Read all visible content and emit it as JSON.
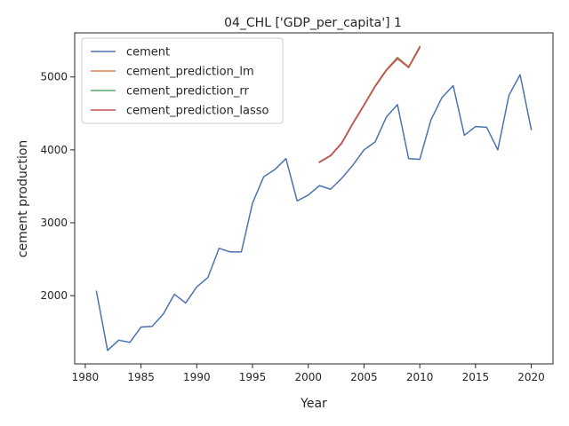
{
  "chart_data": {
    "type": "line",
    "title": "04_CHL ['GDP_per_capita'] 1",
    "xlabel": "Year",
    "ylabel": "cement production",
    "xlim": [
      1979.05,
      2021.95
    ],
    "ylim": [
      1065,
      5605
    ],
    "x_ticks": [
      1980,
      1985,
      1990,
      1995,
      2000,
      2005,
      2010,
      2015,
      2020
    ],
    "y_ticks": [
      2000,
      3000,
      4000,
      5000
    ],
    "grid": false,
    "legend_position": "top-left",
    "series": [
      {
        "name": "cement",
        "color": "#4c72b0",
        "x": [
          1981,
          1982,
          1983,
          1984,
          1985,
          1986,
          1987,
          1988,
          1989,
          1990,
          1991,
          1992,
          1993,
          1994,
          1995,
          1996,
          1997,
          1998,
          1999,
          2000,
          2001,
          2002,
          2003,
          2004,
          2005,
          2006,
          2007,
          2008,
          2009,
          2010,
          2011,
          2012,
          2013,
          2014,
          2015,
          2016,
          2017,
          2018,
          2019,
          2020
        ],
        "y": [
          2060,
          1250,
          1390,
          1360,
          1570,
          1580,
          1750,
          2020,
          1900,
          2120,
          2250,
          2650,
          2600,
          2600,
          3270,
          3630,
          3730,
          3880,
          3300,
          3380,
          3510,
          3460,
          3610,
          3790,
          4000,
          4110,
          4450,
          4620,
          3880,
          3870,
          4410,
          4720,
          4880,
          4200,
          4320,
          4310,
          4000,
          4750,
          5030,
          4280
        ]
      },
      {
        "name": "cement_prediction_lm",
        "color": "#dd8452",
        "x": [
          2001,
          2002,
          2003,
          2004,
          2005,
          2006,
          2007,
          2008,
          2009,
          2010
        ],
        "y": [
          3835,
          3925,
          4100,
          4370,
          4620,
          4880,
          5100,
          5270,
          5140,
          5420
        ]
      },
      {
        "name": "cement_prediction_rr",
        "color": "#55a868",
        "x": [
          2001,
          2002,
          2003,
          2004,
          2005,
          2006,
          2007,
          2008,
          2009,
          2010
        ],
        "y": [
          3830,
          3920,
          4090,
          4360,
          4610,
          4870,
          5090,
          5260,
          5130,
          5410
        ]
      },
      {
        "name": "cement_prediction_lasso",
        "color": "#c44e52",
        "x": [
          2001,
          2002,
          2003,
          2004,
          2005,
          2006,
          2007,
          2008,
          2009,
          2010
        ],
        "y": [
          3830,
          3920,
          4090,
          4360,
          4610,
          4870,
          5090,
          5250,
          5130,
          5400
        ]
      }
    ]
  }
}
